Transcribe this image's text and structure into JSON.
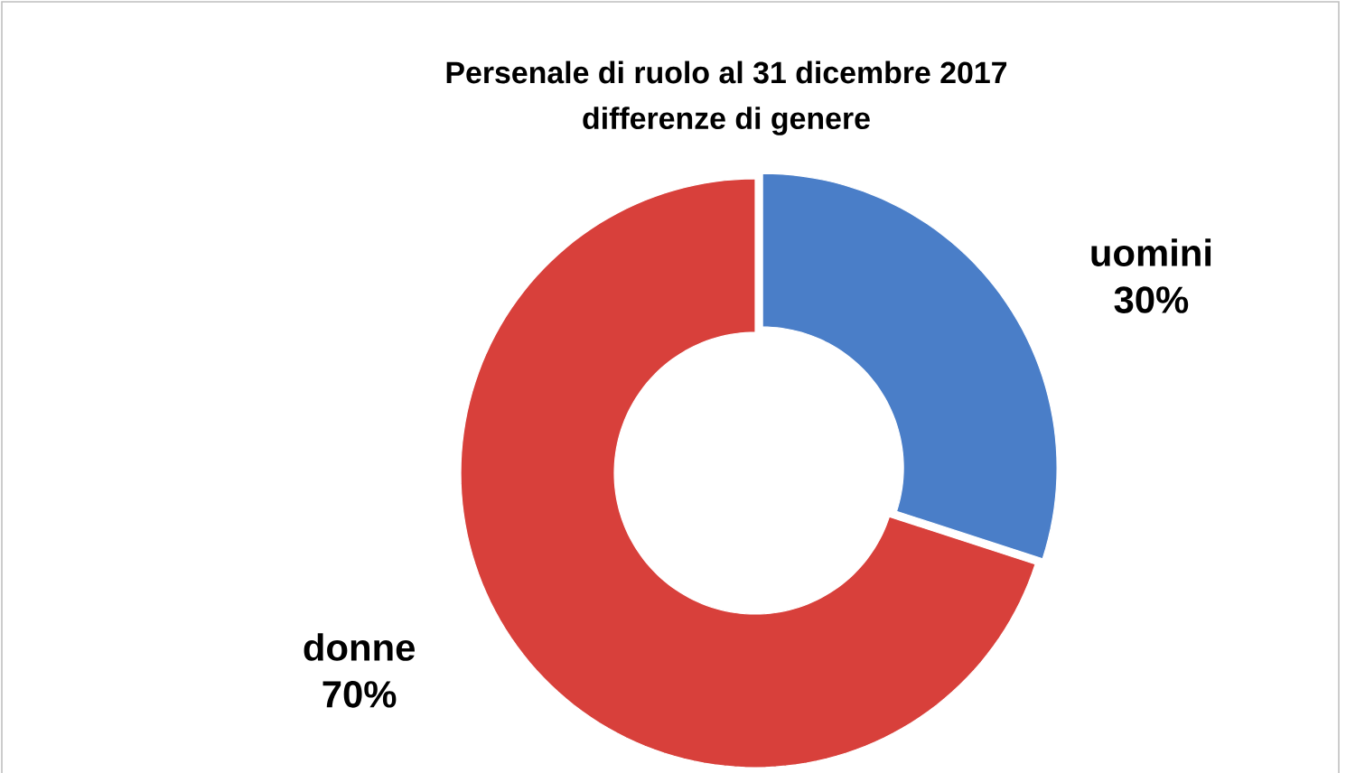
{
  "chart_data": {
    "type": "donut",
    "title": "Persenale di ruolo al 31 dicembre 2017",
    "subtitle": "differenze di genere",
    "categories": [
      "uomini",
      "donne"
    ],
    "values": [
      30,
      70
    ],
    "colors": [
      "#4a7ec8",
      "#d8403b"
    ],
    "value_labels": [
      "30%",
      "70%"
    ]
  }
}
